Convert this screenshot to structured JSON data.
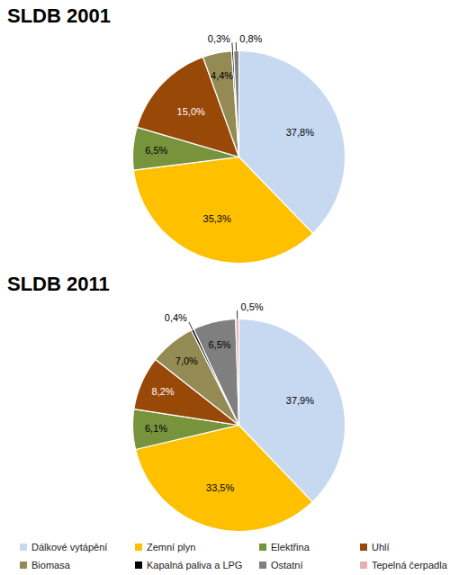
{
  "chart_data": [
    {
      "type": "pie",
      "title": "SLDB 2001",
      "categories": [
        "Dálkové vytápění",
        "Zemní plyn",
        "Elektřina",
        "Uhlí",
        "Biomasa",
        "Kapalná paliva a LPG",
        "Ostatní"
      ],
      "values": [
        37.8,
        35.3,
        6.5,
        15.0,
        4.4,
        0.3,
        0.8
      ],
      "value_labels": [
        "37,8%",
        "35,3%",
        "6,5%",
        "15,0%",
        "4,4%",
        "0,3%",
        "0,8%"
      ],
      "colors": [
        "#c6d9f1",
        "#ffc000",
        "#77933c",
        "#984807",
        "#948a54",
        "#000000",
        "#7f7f7f"
      ],
      "data_labels": true
    },
    {
      "type": "pie",
      "title": "SLDB 2011",
      "categories": [
        "Dálkové vytápění",
        "Zemní plyn",
        "Elektřina",
        "Uhlí",
        "Biomasa",
        "Kapalná paliva a LPG",
        "Ostatní",
        "Tepelná čerpadla"
      ],
      "values": [
        37.9,
        33.5,
        6.1,
        8.2,
        7.0,
        0.4,
        6.5,
        0.5
      ],
      "value_labels": [
        "37,9%",
        "33,5%",
        "6,1%",
        "8,2%",
        "7,0%",
        "0,4%",
        "6,5%",
        "0,5%"
      ],
      "colors": [
        "#c6d9f1",
        "#ffc000",
        "#77933c",
        "#984807",
        "#948a54",
        "#000000",
        "#7f7f7f",
        "#e6b0ae"
      ],
      "data_labels": true,
      "legend": "bottom"
    }
  ]
}
